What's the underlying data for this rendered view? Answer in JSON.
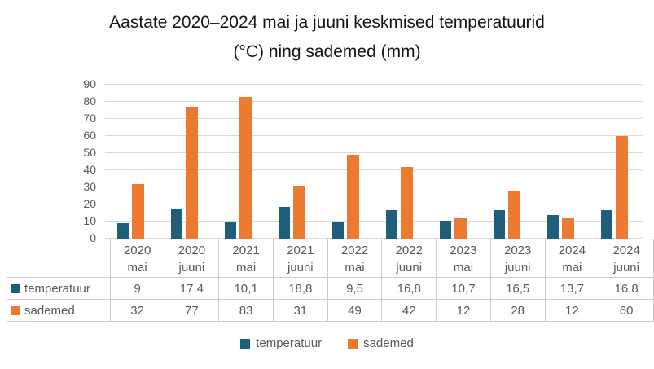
{
  "header": {
    "title_line1": "Aastate 2020–2024 mai ja juuni keskmised temperatuurid",
    "title_line2": "(°C) ning sademed (mm)"
  },
  "colors": {
    "temperatuur": "#1F5F7C",
    "sademed": "#EC7A30",
    "gridline": "#D9D9D9",
    "table_border": "#C9CBCE",
    "axis_text": "#595959",
    "title_text": "#141414"
  },
  "chart_data": {
    "type": "bar",
    "title": "Aastate 2020–2024 mai ja juuni keskmised temperatuurid (°C) ning sademed (mm)",
    "xlabel": "",
    "ylabel": "",
    "ylim": [
      0,
      90
    ],
    "ytick_step": 10,
    "y_ticks": [
      0,
      10,
      20,
      30,
      40,
      50,
      60,
      70,
      80,
      90
    ],
    "grid": true,
    "legend_position": "bottom",
    "data_table_shown": true,
    "categories": [
      {
        "year": "2020",
        "month": "mai"
      },
      {
        "year": "2020",
        "month": "juuni"
      },
      {
        "year": "2021",
        "month": "mai"
      },
      {
        "year": "2021",
        "month": "juuni"
      },
      {
        "year": "2022",
        "month": "mai"
      },
      {
        "year": "2022",
        "month": "juuni"
      },
      {
        "year": "2023",
        "month": "mai"
      },
      {
        "year": "2023",
        "month": "juuni"
      },
      {
        "year": "2024",
        "month": "mai"
      },
      {
        "year": "2024",
        "month": "juuni"
      }
    ],
    "series": [
      {
        "name": "temperatuur",
        "color": "#1F5F7C",
        "values": [
          9,
          17.4,
          10.1,
          18.8,
          9.5,
          16.8,
          10.7,
          16.5,
          13.7,
          16.8
        ],
        "labels": [
          "9",
          "17,4",
          "10,1",
          "18,8",
          "9,5",
          "16,8",
          "10,7",
          "16,5",
          "13,7",
          "16,8"
        ]
      },
      {
        "name": "sademed",
        "color": "#EC7A30",
        "values": [
          32,
          77,
          83,
          31,
          49,
          42,
          12,
          28,
          12,
          60
        ],
        "labels": [
          "32",
          "77",
          "83",
          "31",
          "49",
          "42",
          "12",
          "28",
          "12",
          "60"
        ]
      }
    ]
  }
}
